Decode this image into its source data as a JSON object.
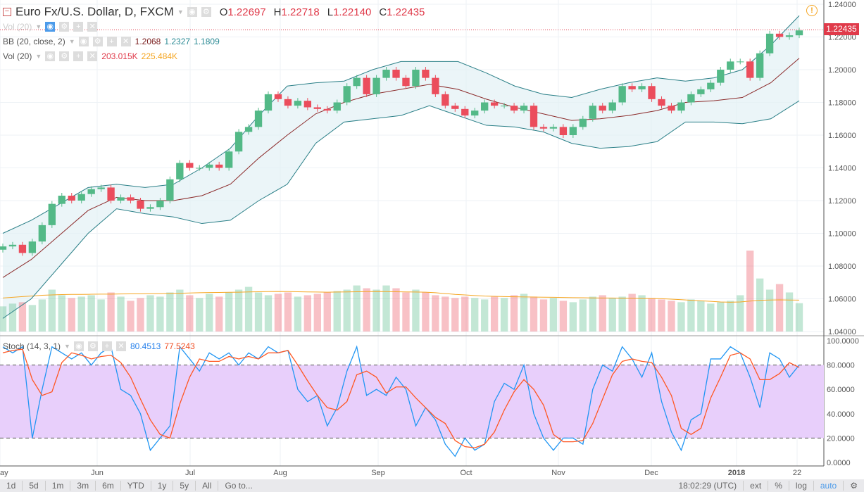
{
  "header": {
    "symbol": "Euro Fx/U.S. Dollar, D, FXCM",
    "o_label": "O",
    "o": "1.22697",
    "h_label": "H",
    "h": "1.22718",
    "l_label": "L",
    "l": "1.22140",
    "c_label": "C",
    "c": "1.22435"
  },
  "indicators": {
    "vol_hidden": "Vol (20)",
    "bb": {
      "label": "BB (20, close, 2)",
      "basis": "1.2068",
      "upper": "1.2327",
      "lower": "1.1809"
    },
    "vol": {
      "label": "Vol (20)",
      "value": "203.015K",
      "ma": "225.484K"
    },
    "stoch": {
      "label": "Stoch (14, 3, 1)",
      "k": "80.4513",
      "d": "77.5243"
    }
  },
  "last_price": "1.22435",
  "toolbar": {
    "ranges": [
      "1d",
      "5d",
      "1m",
      "3m",
      "6m",
      "YTD",
      "1y",
      "5y",
      "All",
      "Go to..."
    ],
    "time": "18:02:29 (UTC)",
    "options": [
      "ext",
      "%",
      "log",
      "auto"
    ]
  },
  "colors": {
    "up": "#53b987",
    "down": "#eb4d5c",
    "bb_band": "#2a7f87",
    "bb_basis": "#8b2a2a",
    "stoch_k": "#2196f3",
    "stoch_d": "#ff5722",
    "stoch_fill": "#e8cffb",
    "vol_ma": "#f5a623"
  },
  "chart_data": {
    "type": "candlestick",
    "price_axis": {
      "ticks": [
        "1.24000",
        "1.22000",
        "1.20000",
        "1.18000",
        "1.16000",
        "1.14000",
        "1.12000",
        "1.10000",
        "1.08000",
        "1.06000",
        "1.04000"
      ],
      "range": [
        1.04,
        1.24
      ]
    },
    "time_axis": {
      "ticks": [
        "ay",
        "Jun",
        "Jul",
        "Aug",
        "Sep",
        "Oct",
        "Nov",
        "Dec",
        "2018",
        "22"
      ]
    },
    "closes": [
      1.092,
      1.093,
      1.088,
      1.095,
      1.105,
      1.118,
      1.123,
      1.12,
      1.124,
      1.127,
      1.128,
      1.12,
      1.122,
      1.12,
      1.115,
      1.116,
      1.12,
      1.133,
      1.143,
      1.14,
      1.14,
      1.142,
      1.14,
      1.15,
      1.162,
      1.165,
      1.175,
      1.185,
      1.182,
      1.178,
      1.181,
      1.177,
      1.176,
      1.175,
      1.18,
      1.19,
      1.195,
      1.185,
      1.195,
      1.2,
      1.195,
      1.19,
      1.2,
      1.195,
      1.185,
      1.178,
      1.176,
      1.172,
      1.175,
      1.18,
      1.178,
      1.178,
      1.175,
      1.178,
      1.165,
      1.164,
      1.165,
      1.16,
      1.165,
      1.17,
      1.178,
      1.175,
      1.18,
      1.19,
      1.188,
      1.19,
      1.182,
      1.178,
      1.175,
      1.18,
      1.185,
      1.188,
      1.192,
      1.2,
      1.205,
      1.205,
      1.195,
      1.21,
      1.222,
      1.22,
      1.221,
      1.224
    ],
    "bb_upper": [
      1.1,
      1.108,
      1.118,
      1.128,
      1.13,
      1.128,
      1.13,
      1.14,
      1.152,
      1.172,
      1.19,
      1.192,
      1.193,
      1.2,
      1.205,
      1.205,
      1.205,
      1.198,
      1.19,
      1.185,
      1.183,
      1.188,
      1.192,
      1.195,
      1.193,
      1.195,
      1.2,
      1.215,
      1.233
    ],
    "bb_basis": [
      1.073,
      1.084,
      1.099,
      1.114,
      1.122,
      1.12,
      1.12,
      1.123,
      1.13,
      1.146,
      1.16,
      1.173,
      1.18,
      1.185,
      1.188,
      1.191,
      1.188,
      1.182,
      1.177,
      1.173,
      1.169,
      1.17,
      1.172,
      1.175,
      1.18,
      1.181,
      1.183,
      1.192,
      1.207
    ],
    "bb_lower": [
      1.048,
      1.06,
      1.08,
      1.1,
      1.115,
      1.112,
      1.11,
      1.106,
      1.108,
      1.12,
      1.13,
      1.155,
      1.168,
      1.17,
      1.172,
      1.178,
      1.172,
      1.166,
      1.165,
      1.162,
      1.155,
      1.152,
      1.153,
      1.156,
      1.168,
      1.168,
      1.167,
      1.17,
      1.181
    ],
    "volume_k": [
      180,
      200,
      210,
      190,
      230,
      300,
      260,
      240,
      250,
      260,
      230,
      280,
      250,
      220,
      240,
      260,
      250,
      280,
      300,
      260,
      240,
      270,
      250,
      280,
      300,
      320,
      280,
      260,
      270,
      280,
      250,
      260,
      270,
      280,
      290,
      300,
      330,
      310,
      300,
      330,
      310,
      280,
      300,
      280,
      260,
      250,
      240,
      250,
      240,
      230,
      250,
      240,
      260,
      270,
      250,
      230,
      240,
      220,
      210,
      230,
      250,
      260,
      240,
      250,
      270,
      260,
      240,
      230,
      220,
      210,
      230,
      220,
      200,
      210,
      220,
      260,
      580,
      380,
      300,
      340,
      280,
      203
    ],
    "volume_ma_k": [
      240,
      245,
      250,
      255,
      260,
      262,
      265,
      266,
      266,
      267,
      268,
      268,
      269,
      270,
      270,
      271,
      272,
      273,
      274,
      276,
      278,
      279,
      280,
      281,
      282,
      284,
      285,
      286,
      287,
      286,
      285,
      284,
      283,
      282,
      283,
      284,
      285,
      286,
      287,
      286,
      285,
      284,
      283,
      282,
      278,
      272,
      266,
      262,
      258,
      254,
      252,
      250,
      249,
      248,
      247,
      246,
      245,
      244,
      243,
      242,
      241,
      240,
      240,
      239,
      238,
      237,
      236,
      235,
      232,
      228,
      224,
      220,
      216,
      212,
      210,
      212,
      218,
      224,
      226,
      227,
      226,
      225
    ],
    "stoch_k": [
      95,
      90,
      95,
      20,
      60,
      95,
      90,
      85,
      90,
      80,
      90,
      95,
      60,
      55,
      40,
      10,
      20,
      30,
      95,
      85,
      75,
      90,
      85,
      90,
      80,
      90,
      85,
      95,
      90,
      92,
      60,
      50,
      55,
      30,
      45,
      75,
      95,
      55,
      60,
      55,
      70,
      60,
      30,
      45,
      35,
      15,
      5,
      20,
      10,
      15,
      50,
      65,
      60,
      80,
      40,
      20,
      10,
      20,
      20,
      15,
      60,
      80,
      75,
      95,
      85,
      70,
      90,
      50,
      25,
      10,
      35,
      40,
      85,
      85,
      95,
      90,
      70,
      45,
      90,
      85,
      70,
      80
    ],
    "stoch_d": [
      90,
      92,
      93,
      68,
      55,
      58,
      82,
      90,
      88,
      85,
      87,
      88,
      82,
      70,
      52,
      35,
      23,
      20,
      48,
      70,
      85,
      83,
      83,
      87,
      85,
      87,
      85,
      90,
      90,
      92,
      80,
      67,
      55,
      45,
      43,
      50,
      72,
      75,
      70,
      57,
      62,
      62,
      53,
      45,
      37,
      32,
      18,
      13,
      12,
      15,
      25,
      43,
      58,
      68,
      60,
      47,
      23,
      17,
      17,
      18,
      32,
      52,
      72,
      83,
      85,
      83,
      82,
      70,
      55,
      28,
      23,
      28,
      53,
      70,
      88,
      90,
      85,
      68,
      68,
      73,
      82,
      78
    ],
    "stoch_axis": {
      "ticks": [
        "100.0000",
        "80.0000",
        "60.0000",
        "40.0000",
        "20.0000",
        "0.0000"
      ],
      "range": [
        0,
        100
      ],
      "band": [
        20,
        80
      ]
    }
  }
}
